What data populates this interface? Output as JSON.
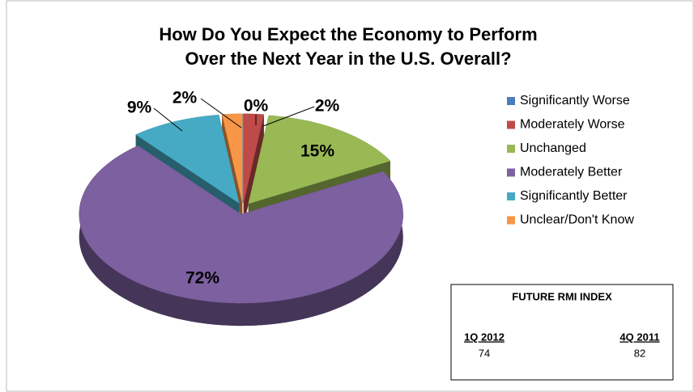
{
  "chart_data": {
    "type": "pie",
    "title": [
      "How Do You Expect the Economy to Perform",
      "Over the Next Year in the U.S. Overall?"
    ],
    "categories": [
      "Significantly Worse",
      "Moderately Worse",
      "Unchanged",
      "Moderately Better",
      "Significantly Better",
      "Unclear/Don't Know"
    ],
    "values": [
      0,
      2,
      15,
      72,
      9,
      2
    ],
    "value_labels": [
      "0%",
      "2%",
      "15%",
      "72%",
      "9%",
      "2%"
    ],
    "colors": [
      "#4a7ebb",
      "#be4b48",
      "#98b954",
      "#7d60a0",
      "#46aac5",
      "#f79646"
    ],
    "legend": "right"
  },
  "index_box": {
    "title": "FUTURE RMI INDEX",
    "columns": [
      {
        "label": "1Q 2012",
        "value": 74
      },
      {
        "label": "4Q 2011",
        "value": 82
      }
    ]
  }
}
